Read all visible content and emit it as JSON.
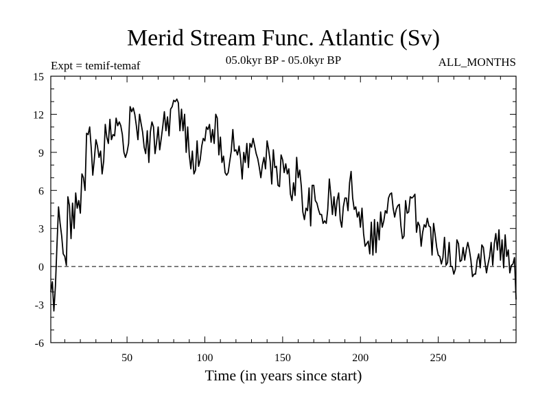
{
  "chart_data": {
    "type": "line",
    "title": "Merid Stream Func. Atlantic (Sv)",
    "subtitle_left": "Expt = temif-temaf",
    "subtitle_center": "05.0kyr BP - 05.0kyr BP",
    "subtitle_right": "ALL_MONTHS",
    "xlabel": "Time (in years since start)",
    "ylabel": "",
    "xlim": [
      1,
      300
    ],
    "ylim": [
      -6,
      15
    ],
    "xticks": [
      50,
      100,
      150,
      200,
      250
    ],
    "yticks": [
      -6,
      -3,
      0,
      3,
      6,
      9,
      12,
      15
    ],
    "reference_line": {
      "y": 0,
      "style": "dashed"
    },
    "anchors": [
      [
        1,
        -2.0
      ],
      [
        2,
        -1.2
      ],
      [
        3,
        -3.5
      ],
      [
        4,
        -1.5
      ],
      [
        5,
        1.8
      ],
      [
        6,
        4.7
      ],
      [
        7,
        3.4
      ],
      [
        8,
        2.4
      ],
      [
        9,
        1.0
      ],
      [
        10,
        0.8
      ],
      [
        11,
        0.1
      ],
      [
        12,
        5.5
      ],
      [
        13,
        4.8
      ],
      [
        14,
        2.2
      ],
      [
        15,
        5.0
      ],
      [
        16,
        3.0
      ],
      [
        17,
        5.8
      ],
      [
        18,
        4.6
      ],
      [
        19,
        5.2
      ],
      [
        20,
        4.2
      ],
      [
        21,
        7.3
      ],
      [
        22,
        7.0
      ],
      [
        23,
        6.0
      ],
      [
        24,
        10.5
      ],
      [
        25,
        10.4
      ],
      [
        26,
        11.0
      ],
      [
        27,
        9.3
      ],
      [
        28,
        7.2
      ],
      [
        29,
        8.5
      ],
      [
        30,
        10.0
      ],
      [
        31,
        9.5
      ],
      [
        32,
        8.6
      ],
      [
        33,
        9.1
      ],
      [
        34,
        7.3
      ],
      [
        35,
        8.3
      ],
      [
        36,
        11.2
      ],
      [
        37,
        10.2
      ],
      [
        38,
        9.7
      ],
      [
        39,
        11.6
      ],
      [
        40,
        10.0
      ],
      [
        45,
        10.6
      ],
      [
        50,
        9.9
      ],
      [
        55,
        12.5
      ],
      [
        60,
        9.5
      ],
      [
        65,
        9.7
      ],
      [
        70,
        10.5
      ],
      [
        75,
        11.5
      ],
      [
        80,
        12.6
      ],
      [
        85,
        11.3
      ],
      [
        90,
        9.5
      ],
      [
        95,
        8.5
      ],
      [
        100,
        9.6
      ],
      [
        105,
        11.6
      ],
      [
        110,
        9.2
      ],
      [
        115,
        8.6
      ],
      [
        120,
        9.6
      ],
      [
        125,
        8.2
      ],
      [
        130,
        9.3
      ],
      [
        135,
        8.7
      ],
      [
        140,
        8.3
      ],
      [
        145,
        7.5
      ],
      [
        150,
        7.8
      ],
      [
        155,
        6.2
      ],
      [
        160,
        7.5
      ],
      [
        165,
        4.5
      ],
      [
        170,
        5.0
      ],
      [
        175,
        4.0
      ],
      [
        180,
        5.3
      ],
      [
        185,
        4.5
      ],
      [
        190,
        4.5
      ],
      [
        195,
        6.5
      ],
      [
        200,
        4.0
      ],
      [
        205,
        2.5
      ],
      [
        210,
        2.5
      ],
      [
        215,
        4.0
      ],
      [
        220,
        5.2
      ],
      [
        225,
        3.5
      ],
      [
        230,
        4.0
      ],
      [
        235,
        4.5
      ],
      [
        240,
        2.8
      ],
      [
        245,
        2.6
      ],
      [
        250,
        2.0
      ],
      [
        255,
        1.5
      ],
      [
        260,
        1.0
      ],
      [
        265,
        0.9
      ],
      [
        270,
        0.8
      ],
      [
        275,
        1.0
      ],
      [
        280,
        0.8
      ],
      [
        285,
        1.2
      ],
      [
        290,
        1.7
      ],
      [
        295,
        0.5
      ],
      [
        300,
        -1.2
      ]
    ],
    "noise_amplitude": 1.1,
    "series": [
      {
        "name": "Merid Stream Func. Atlantic",
        "values": []
      }
    ]
  }
}
